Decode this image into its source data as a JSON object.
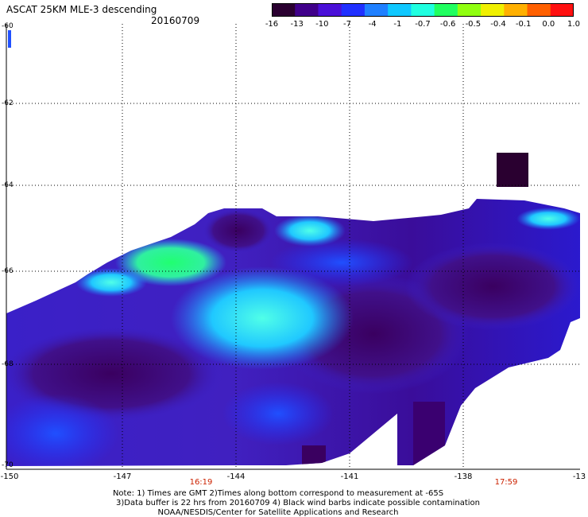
{
  "title": "ASCAT 25KM MLE-3 descending",
  "date": "20160709",
  "colorbar": {
    "ticks": [
      "-16",
      "-13",
      "-10",
      "-7",
      "-4",
      "-1",
      "-0.7",
      "-0.6",
      "-0.5",
      "-0.4",
      "-0.1",
      "0.0",
      "1.0"
    ],
    "colors": [
      "#2a0030",
      "#40008a",
      "#4a10d8",
      "#2030ff",
      "#2080ff",
      "#10c8ff",
      "#20ffe0",
      "#20ff60",
      "#90ff10",
      "#f0f000",
      "#ffb000",
      "#ff6000",
      "#ff1010"
    ]
  },
  "map": {
    "lat_labels": [
      "-60",
      "-62",
      "-64",
      "-66",
      "-68",
      "-70"
    ],
    "lon_labels": [
      "-150",
      "-147",
      "-144",
      "-141",
      "-138",
      "-13"
    ],
    "times": [
      "16:19",
      "17:59"
    ]
  },
  "notes": [
    "Note: 1) Times are GMT 2)Times along bottom correspond to measurement at -65S",
    "3)Data buffer is 22 hrs from 20160709 4) Black wind barbs indicate possible contamination",
    "NOAA/NESDIS/Center for Satellite Applications and Research"
  ]
}
